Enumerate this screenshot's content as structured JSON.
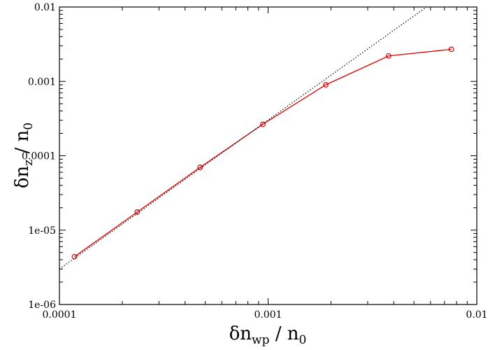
{
  "chart_data": {
    "type": "line",
    "title": "",
    "x_scale": "log",
    "y_scale": "log",
    "xlim": [
      0.0001,
      0.01
    ],
    "ylim": [
      1e-06,
      0.01
    ],
    "xlabel": {
      "main": "δn",
      "sub": "wp",
      "rest": " / n",
      "sub2": "0"
    },
    "ylabel": {
      "main": "δn",
      "sub": "z",
      "rest": " / n",
      "sub2": "0"
    },
    "x_ticks": [
      {
        "value": 0.0001,
        "label": "0.0001"
      },
      {
        "value": 0.001,
        "label": "0.001"
      },
      {
        "value": 0.01,
        "label": "0.01"
      }
    ],
    "y_ticks": [
      {
        "value": 1e-06,
        "label": "1e-06"
      },
      {
        "value": 1e-05,
        "label": "1e-05"
      },
      {
        "value": 0.0001,
        "label": "0.0001"
      },
      {
        "value": 0.001,
        "label": "0.001"
      },
      {
        "value": 0.01,
        "label": "0.01"
      }
    ],
    "grid": false,
    "series": [
      {
        "color": "#dd0000",
        "style": "solid",
        "marker": "circle",
        "x": [
          0.000118,
          0.000236,
          0.000472,
          0.000944,
          0.00189,
          0.00378,
          0.00755
        ],
        "y": [
          4.4e-06,
          1.75e-05,
          7e-05,
          0.000265,
          0.0009,
          0.0022,
          0.0027
        ]
      },
      {
        "color": "#000000",
        "style": "dotted",
        "marker": "none",
        "x": [
          0.0001,
          0.00574
        ],
        "y": [
          3e-06,
          0.01
        ]
      }
    ]
  }
}
